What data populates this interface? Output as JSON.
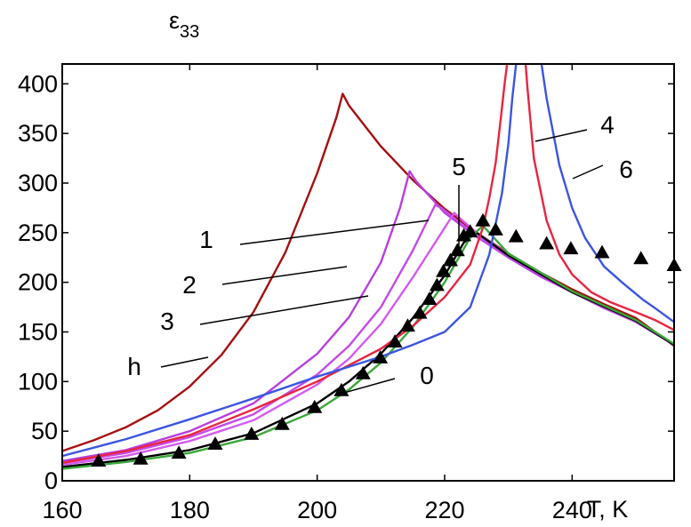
{
  "chart_data": {
    "type": "line",
    "title": "",
    "ylabel_symbol": "ε",
    "ylabel_sub": "33",
    "xlabel": "T, K",
    "xlim": [
      160,
      256
    ],
    "ylim": [
      0,
      420
    ],
    "xticks": [
      "160",
      "180",
      "200",
      "220",
      "240"
    ],
    "xtick_values": [
      160,
      180,
      200,
      220,
      240
    ],
    "yticks": [
      "0",
      "50",
      "100",
      "150",
      "200",
      "250",
      "300",
      "350",
      "400"
    ],
    "ytick_values": [
      0,
      50,
      100,
      150,
      200,
      250,
      300,
      350,
      400
    ],
    "series": [
      {
        "name": "h",
        "label": "h",
        "color": "#a50f0f",
        "x": [
          160,
          165,
          170,
          175,
          180,
          185,
          190,
          195,
          200,
          203,
          204,
          205,
          210,
          215,
          220,
          225,
          230,
          235,
          240,
          245,
          250,
          256
        ],
        "y": [
          30,
          41,
          54,
          71,
          95,
          127,
          170,
          230,
          310,
          366,
          390,
          378,
          337,
          303,
          274,
          250,
          229,
          210,
          193,
          178,
          164,
          136
        ]
      },
      {
        "name": "1",
        "label": "1",
        "color": "#b83ee0",
        "x": [
          160,
          170,
          180,
          190,
          200,
          205,
          210,
          213,
          214.5,
          215.5,
          220,
          225,
          230,
          235,
          240,
          245,
          250,
          256
        ],
        "y": [
          20,
          31,
          50,
          78,
          128,
          165,
          220,
          275,
          312,
          302,
          270,
          246,
          225,
          206,
          190,
          174,
          160,
          137
        ]
      },
      {
        "name": "2",
        "label": "2",
        "color": "#c64ae8",
        "x": [
          160,
          170,
          180,
          190,
          200,
          205,
          210,
          215,
          218.5,
          219.5,
          222,
          225,
          230,
          240,
          250,
          256
        ],
        "y": [
          18,
          28,
          44,
          67,
          107,
          136,
          175,
          232,
          278,
          275,
          262,
          247,
          226,
          190,
          160,
          137
        ]
      },
      {
        "name": "3",
        "label": "3",
        "color": "#d45af0",
        "x": [
          160,
          170,
          180,
          190,
          200,
          205,
          210,
          215,
          220,
          221.5,
          222.5,
          225,
          230,
          240,
          250,
          256
        ],
        "y": [
          16,
          25,
          40,
          61,
          97,
          123,
          158,
          205,
          255,
          270,
          264,
          250,
          228,
          190,
          160,
          137
        ]
      },
      {
        "name": "0",
        "label": "0",
        "color": "#000000",
        "x": [
          160,
          170,
          180,
          190,
          200,
          205,
          210,
          215,
          220,
          223,
          225,
          230,
          240,
          250,
          256
        ],
        "y": [
          14,
          21,
          31,
          48,
          78,
          100,
          128,
          164,
          207,
          240,
          250,
          227,
          190,
          161,
          137
        ]
      },
      {
        "name": "green",
        "label": "",
        "color": "#3aa73a",
        "x": [
          160,
          170,
          180,
          190,
          200,
          205,
          210,
          215,
          220,
          224,
          226,
          230,
          240,
          250,
          256
        ],
        "y": [
          12,
          19,
          28,
          44,
          71,
          92,
          119,
          155,
          200,
          245,
          257,
          229,
          191,
          162,
          138
        ]
      },
      {
        "name": "5",
        "label": "5",
        "color": "#e8253f",
        "x": [
          160,
          170,
          180,
          190,
          200,
          210,
          215,
          220,
          224,
          226,
          227,
          228,
          228.8,
          229.4,
          229.8
        ],
        "y": [
          18,
          30,
          46,
          72,
          100,
          133,
          156,
          185,
          218,
          255,
          285,
          320,
          365,
          400,
          420
        ]
      },
      {
        "name": "4",
        "label": "4",
        "color": "#e8253f",
        "x": [
          232.7,
          233,
          234,
          236,
          238,
          240,
          243,
          246,
          250,
          253,
          256
        ],
        "y": [
          420,
          395,
          325,
          262,
          228,
          208,
          190,
          180,
          170,
          162,
          152
        ]
      },
      {
        "name": "blue",
        "label": "",
        "color": "#3b55e0",
        "x": [
          160,
          170,
          180,
          190,
          200,
          210,
          215,
          220,
          224,
          227,
          229,
          230,
          230.6,
          231.2
        ],
        "y": [
          25,
          42,
          62,
          83,
          105,
          125,
          137,
          150,
          175,
          228,
          290,
          340,
          385,
          420
        ]
      },
      {
        "name": "6",
        "label": "6",
        "color": "#3b55e0",
        "x": [
          235.2,
          236,
          238,
          240,
          242,
          245,
          248,
          251,
          253,
          256
        ],
        "y": [
          420,
          385,
          318,
          275,
          245,
          216,
          199,
          183,
          174,
          160
        ]
      },
      {
        "name": "triangles",
        "label": "",
        "type": "scatter",
        "color": "#000000",
        "x": [
          165.7,
          172.3,
          178.3,
          184,
          189.7,
          194.5,
          199.6,
          203.8,
          207.2,
          209.9,
          212.2,
          214.2,
          216.1,
          217.6,
          218.8,
          219.8,
          220.9,
          222,
          223,
          224,
          226,
          228,
          231.2,
          236,
          239.8,
          244.7,
          250.8,
          256
        ],
        "y": [
          20,
          22,
          28,
          37,
          47,
          57,
          74,
          91,
          108,
          124,
          140,
          156,
          169,
          183,
          197,
          211,
          222,
          232,
          247,
          251,
          262,
          253,
          246,
          239,
          234,
          230,
          224,
          217
        ]
      }
    ],
    "annotations": [
      {
        "text": "h",
        "series": "h"
      },
      {
        "text": "1",
        "series": "1"
      },
      {
        "text": "2",
        "series": "2"
      },
      {
        "text": "3",
        "series": "3"
      },
      {
        "text": "0",
        "series": "0"
      },
      {
        "text": "5",
        "series": "5"
      },
      {
        "text": "4",
        "series": "4"
      },
      {
        "text": "6",
        "series": "6"
      }
    ]
  }
}
